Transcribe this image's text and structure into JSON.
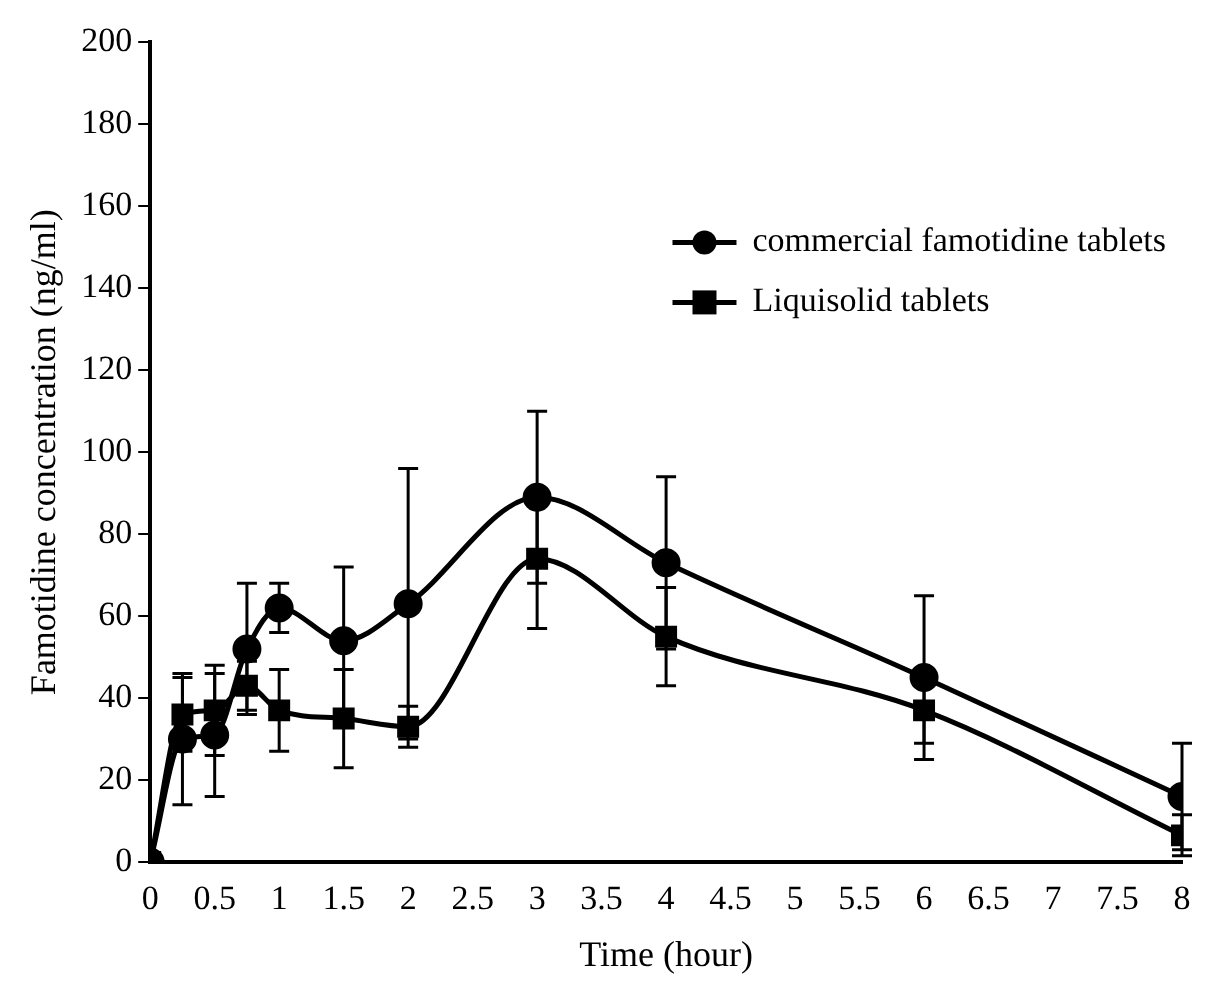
{
  "chart_data": {
    "type": "line",
    "xlabel": "Time (hour)",
    "ylabel": "Famotidine concentration (ng/ml)",
    "xlim": [
      0,
      8
    ],
    "xticks": [
      0,
      0.5,
      1,
      1.5,
      2,
      2.5,
      3,
      3.5,
      4,
      4.5,
      5,
      5.5,
      6,
      6.5,
      7,
      7.5,
      8
    ],
    "ylim": [
      0,
      200
    ],
    "yticks": [
      0,
      20,
      40,
      60,
      80,
      100,
      120,
      140,
      160,
      180,
      200
    ],
    "grid": false,
    "legend": "top right",
    "line_style": "solid",
    "x": [
      0,
      0.25,
      0.5,
      0.75,
      1,
      1.5,
      2,
      3,
      4,
      6,
      8
    ],
    "series": [
      {
        "name": "commercial famotidine tablets",
        "color": "#000000",
        "marker": "circle",
        "values": [
          0,
          30,
          31,
          52,
          62,
          54,
          63,
          89,
          73,
          45,
          16
        ],
        "errors": [
          null,
          16,
          15,
          16,
          6,
          18,
          33,
          21,
          21,
          20,
          13
        ]
      },
      {
        "name": "Liquisolid tablets",
        "color": "#000000",
        "marker": "square",
        "values": [
          0,
          36,
          37,
          43,
          37,
          35,
          33,
          74,
          55,
          37,
          6.5
        ],
        "errors": [
          null,
          9,
          11,
          6,
          10,
          12,
          5,
          17,
          12,
          8,
          5
        ]
      }
    ]
  }
}
